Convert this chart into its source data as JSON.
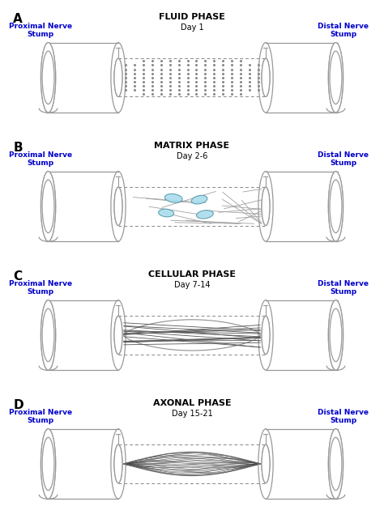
{
  "panels": [
    "A",
    "B",
    "C",
    "D"
  ],
  "panel_titles": [
    "FLUID PHASE",
    "MATRIX PHASE",
    "CELLULAR PHASE",
    "AXONAL PHASE"
  ],
  "panel_subtitles": [
    "Day 1",
    "Day 2-6",
    "Day 7-14",
    "Day 15-21"
  ],
  "label_left": "Proximal Nerve\nStump",
  "label_right": "Distal Nerve\nStump",
  "label_color": "#0000cc",
  "bg_color": "#ffffff",
  "gray": "#999999",
  "dark_gray": "#666666",
  "dot_color": "#888888",
  "cell_color": "#aaddee",
  "cell_edge": "#5599aa",
  "fiber_color": "#555555",
  "suture_color": "#888888",
  "dashed_color": "#888888"
}
